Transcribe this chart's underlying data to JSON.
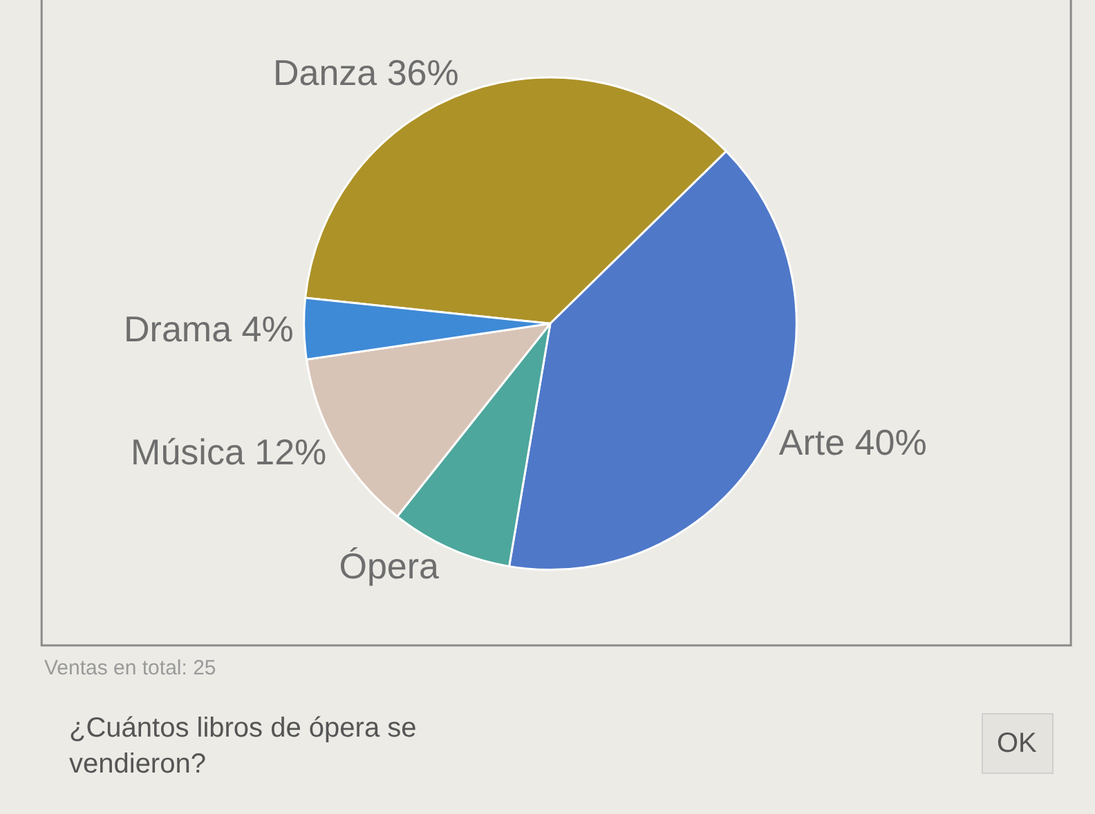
{
  "chart_data": {
    "type": "pie",
    "categories": [
      "Danza",
      "Arte",
      "Ópera",
      "Música",
      "Drama"
    ],
    "values": [
      36,
      40,
      8,
      12,
      4
    ],
    "value_labels": [
      "36%",
      "40%",
      null,
      "12%",
      "4%"
    ],
    "colors": [
      "#ad9228",
      "#4f78c9",
      "#4da79c",
      "#d8c4b6",
      "#3e8ad6"
    ],
    "legend": false,
    "annotations": [
      "Ventas en total: 25",
      "¿Cuántos libros de ópera se vendieron?",
      "OK"
    ]
  }
}
